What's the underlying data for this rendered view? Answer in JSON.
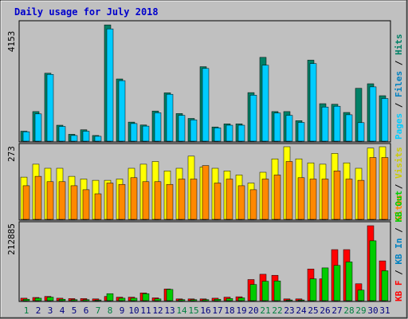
{
  "colors": {
    "background": "#C0C0C0",
    "title": "#0000CC",
    "day_weekday": "#000080",
    "day_weekend": "#008040",
    "hits": "#00CCFF",
    "hits_shadow": "#006699",
    "files": "#008066",
    "files_shadow": "#004030",
    "pages": "#00CCFF",
    "sites": "#FF8800",
    "sites_shadow": "#994400",
    "visits": "#FFFF00",
    "visits_shadow": "#999900",
    "kb_in": "#00CC00",
    "kb_in_shadow": "#006600",
    "kb_out": "#FF0000",
    "kb_out_shadow": "#990000"
  },
  "chart_data": {
    "type": "bar",
    "title": "Daily usage for July 2018",
    "categories": [
      "1",
      "2",
      "3",
      "4",
      "5",
      "6",
      "7",
      "8",
      "9",
      "10",
      "11",
      "12",
      "13",
      "14",
      "15",
      "16",
      "17",
      "18",
      "19",
      "20",
      "21",
      "22",
      "23",
      "24",
      "25",
      "26",
      "27",
      "28",
      "29",
      "30",
      "31"
    ],
    "weekend_days": [
      "1",
      "7",
      "8",
      "14",
      "15",
      "21",
      "22",
      "28",
      "29"
    ],
    "panels": [
      {
        "y_max_label": "4153",
        "ylim": [
          0,
          4153
        ],
        "legend": [
          {
            "label": "Pages",
            "color": "#00CCFF"
          },
          {
            "label": "Files",
            "color": "#0080C0"
          },
          {
            "label": "Hits",
            "color": "#008066"
          }
        ],
        "series": [
          {
            "name": "Files",
            "values": [
              350,
              1040,
              2390,
              560,
              240,
              400,
              200,
              4090,
              2190,
              670,
              570,
              1060,
              1700,
              970,
              800,
              2620,
              500,
              610,
              610,
              1710,
              2950,
              1040,
              1040,
              720,
              2850,
              1320,
              1300,
              1010,
              1860,
              2020,
              1600
            ]
          },
          {
            "name": "Hits",
            "values": [
              330,
              960,
              2350,
              520,
              200,
              350,
              170,
              3950,
              2130,
              620,
              530,
              1000,
              1650,
              910,
              750,
              2560,
              470,
              560,
              560,
              1620,
              2670,
              990,
              910,
              660,
              2730,
              1200,
              1230,
              930,
              650,
              1910,
              1500
            ]
          }
        ]
      },
      {
        "y_max_label": "273",
        "ylim": [
          0,
          273
        ],
        "legend": [
          {
            "label": "Sites",
            "color": "#FF8800"
          },
          {
            "label": "Visits",
            "color": "#FFFF00"
          }
        ],
        "series": [
          {
            "name": "Visits",
            "values": [
              157,
              205,
              190,
              190,
              160,
              150,
              145,
              145,
              150,
              190,
              205,
              215,
              180,
              190,
              235,
              195,
              190,
              180,
              165,
              135,
              175,
              225,
              270,
              225,
              210,
              205,
              245,
              210,
              190,
              265,
              270
            ]
          },
          {
            "name": "Sites",
            "values": [
              125,
              160,
              140,
              140,
              125,
              110,
              95,
              135,
              130,
              155,
              140,
              140,
              130,
              150,
              150,
              200,
              135,
              150,
              125,
              110,
              150,
              165,
              215,
              155,
              150,
              150,
              180,
              150,
              145,
              230,
              230
            ]
          }
        ]
      },
      {
        "y_max_label": "212885",
        "ylim": [
          0,
          212885
        ],
        "legend": [
          {
            "label": "KB F",
            "color": "#FF0000"
          },
          {
            "label": "KB In",
            "color": "#0080C0"
          },
          {
            "label": "KB Out",
            "color": "#00CC00"
          }
        ],
        "series": [
          {
            "name": "KB F",
            "values": [
              7000,
              9000,
              12000,
              7000,
              6000,
              6000,
              5000,
              12000,
              10000,
              10000,
              22000,
              8000,
              33000,
              5000,
              5000,
              5000,
              7000,
              10000,
              11000,
              60000,
              75000,
              72000,
              5000,
              5000,
              90000,
              62000,
              145000,
              145000,
              48000,
              215000,
              113000
            ]
          },
          {
            "name": "KB Out",
            "values": [
              4000,
              7000,
              10000,
              4000,
              3000,
              3000,
              2000,
              20000,
              7000,
              7000,
              20000,
              5000,
              32000,
              3000,
              3000,
              3000,
              4000,
              6000,
              8000,
              46000,
              55000,
              56000,
              2000,
              2000,
              62000,
              93000,
              100000,
              110000,
              30000,
              170000,
              85000
            ]
          }
        ]
      }
    ]
  }
}
